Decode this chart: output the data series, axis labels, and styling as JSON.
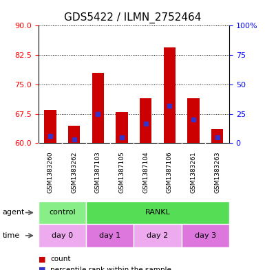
{
  "title": "GDS5422 / ILMN_2752464",
  "samples": [
    "GSM1383260",
    "GSM1383262",
    "GSM1387103",
    "GSM1387105",
    "GSM1387104",
    "GSM1387106",
    "GSM1383261",
    "GSM1383263"
  ],
  "bar_bottoms": [
    60,
    60,
    60,
    60,
    60,
    60,
    60,
    60
  ],
  "bar_tops": [
    68.5,
    64.5,
    78.0,
    68.0,
    71.5,
    84.5,
    71.5,
    63.5
  ],
  "percentile_values": [
    61.8,
    61.0,
    67.5,
    61.5,
    65.0,
    69.5,
    66.0,
    61.5
  ],
  "ylim": [
    60,
    90
  ],
  "yticks_left": [
    60,
    67.5,
    75,
    82.5,
    90
  ],
  "yticks_right": [
    0,
    25,
    50,
    75,
    100
  ],
  "yright_labels": [
    "0",
    "25",
    "50",
    "75",
    "100%"
  ],
  "bar_color": "#cc0000",
  "percentile_color": "#3333cc",
  "agent_info": [
    [
      "control",
      0,
      2,
      "#88ee88"
    ],
    [
      "RANKL",
      2,
      8,
      "#55dd55"
    ]
  ],
  "time_info": [
    [
      "day 0",
      0,
      2,
      "#eeaaee"
    ],
    [
      "day 1",
      2,
      4,
      "#dd77dd"
    ],
    [
      "day 2",
      4,
      6,
      "#eeaaee"
    ],
    [
      "day 3",
      6,
      8,
      "#dd77dd"
    ]
  ],
  "row_label_agent": "agent",
  "row_label_time": "time",
  "legend_count": "count",
  "legend_percentile": "percentile rank within the sample",
  "bar_color_hex": "#cc0000",
  "percentile_color_hex": "#3333cc",
  "title_fontsize": 11,
  "tick_fontsize": 8,
  "bar_width": 0.5
}
